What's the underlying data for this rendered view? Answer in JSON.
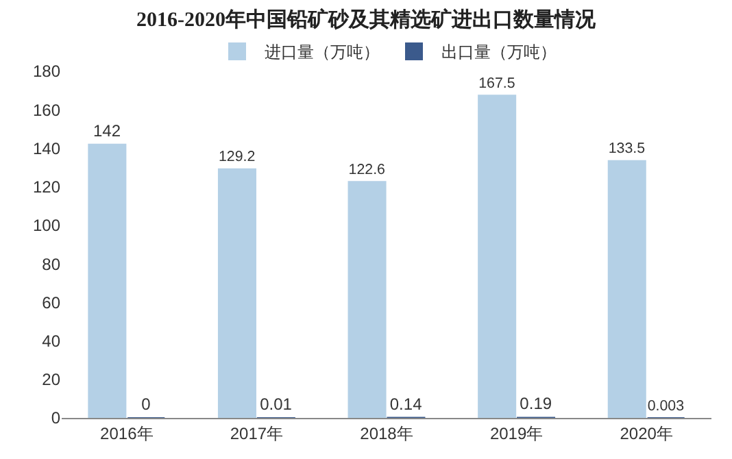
{
  "chart_data": {
    "type": "bar",
    "title": "2016-2020年中国铅矿砂及其精选矿进出口数量情况",
    "categories": [
      "2016年",
      "2017年",
      "2018年",
      "2019年",
      "2020年"
    ],
    "series": [
      {
        "name": "进口量（万吨）",
        "color": "#b4d0e6",
        "values": [
          142,
          129.2,
          122.6,
          167.5,
          133.5
        ]
      },
      {
        "name": "出口量（万吨）",
        "color": "#3b5a8c",
        "values": [
          0,
          0.01,
          0.14,
          0.19,
          0.003
        ]
      }
    ],
    "ylim": [
      0,
      180
    ],
    "yticks": [
      0,
      20,
      40,
      60,
      80,
      100,
      120,
      140,
      160,
      180
    ],
    "data_labels": true,
    "legend": "top",
    "grid": false
  }
}
